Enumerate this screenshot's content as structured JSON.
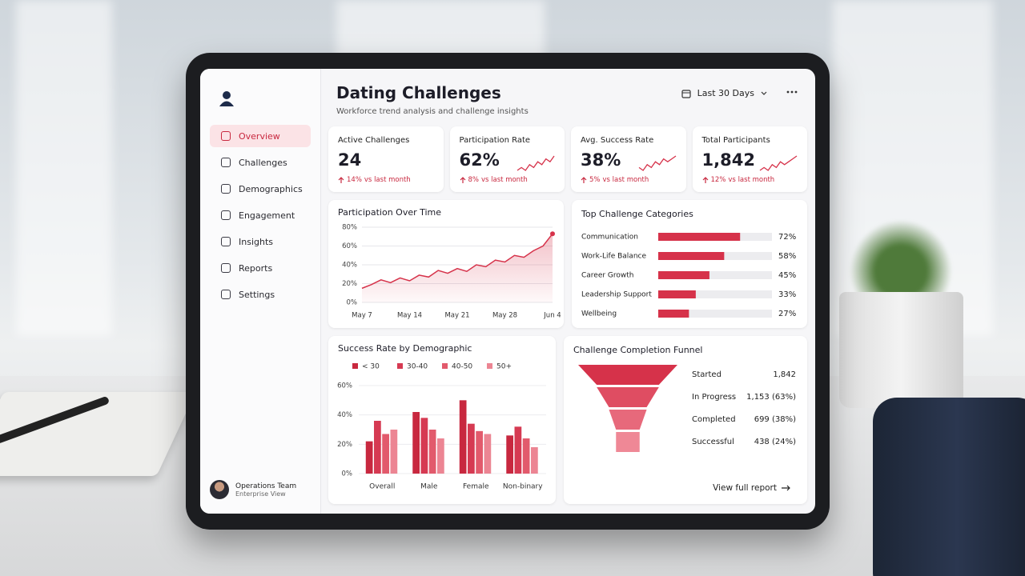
{
  "header": {
    "title": "Dating Challenges",
    "subtitle": "Workforce trend analysis and challenge insights",
    "range": "Last 30 Days"
  },
  "nav": [
    "Overview",
    "Challenges",
    "Demographics",
    "Engagement",
    "Insights",
    "Reports",
    "Settings"
  ],
  "user": {
    "name": "Operations Team",
    "role": "Enterprise View"
  },
  "kpis": [
    {
      "label": "Active Challenges",
      "value": "24",
      "delta": "14%",
      "note": "vs last month"
    },
    {
      "label": "Participation Rate",
      "value": "62%",
      "delta": "8%",
      "note": "vs last month",
      "trend": [
        3,
        4,
        3,
        5,
        4,
        6,
        5,
        7,
        6,
        8
      ]
    },
    {
      "label": "Avg. Success Rate",
      "value": "38%",
      "delta": "5%",
      "note": "vs last month",
      "trend": [
        4,
        3,
        5,
        4,
        6,
        5,
        7,
        6,
        7,
        8
      ]
    },
    {
      "label": "Total Participants",
      "value": "1,842",
      "delta": "12%",
      "note": "vs last month",
      "trend": [
        3,
        4,
        3,
        5,
        4,
        6,
        5,
        6,
        7,
        8
      ]
    }
  ],
  "link": "View full report",
  "chart_data": [
    {
      "type": "line",
      "title": "Participation Over Time",
      "categories": [
        "May 7",
        null,
        null,
        null,
        null,
        "May 14",
        null,
        null,
        null,
        null,
        "May 21",
        null,
        null,
        null,
        null,
        "May 28",
        null,
        null,
        null,
        null,
        "Jun 4"
      ],
      "values": [
        15,
        19,
        24,
        21,
        26,
        23,
        29,
        27,
        34,
        31,
        36,
        33,
        40,
        38,
        45,
        43,
        50,
        48,
        55,
        60,
        73
      ],
      "color": "#d6324a",
      "ylim": [
        0,
        80
      ],
      "yticks": [
        {
          "value": 0,
          "label": "0%"
        },
        {
          "value": 20,
          "label": "20%"
        },
        {
          "value": 40,
          "label": "40%"
        },
        {
          "value": 60,
          "label": "60%"
        },
        {
          "value": 80,
          "label": "80%"
        }
      ],
      "grid": true
    },
    {
      "type": "hbar",
      "title": "Top Challenge Categories",
      "categories": [
        "Communication",
        "Work-Life Balance",
        "Career Growth",
        "Leadership Support",
        "Wellbeing"
      ],
      "values": [
        72,
        58,
        45,
        33,
        27
      ],
      "value_labels": [
        "72%",
        "58%",
        "45%",
        "33%",
        "27%"
      ],
      "color": "#d6324a",
      "xlim": [
        0,
        100
      ]
    },
    {
      "type": "grouped_bar",
      "title": "Success Rate by Demographic",
      "categories": [
        "Overall",
        "Male",
        "Female",
        "Non-binary"
      ],
      "series": [
        {
          "name": "< 30",
          "color": "#c8283f",
          "values": [
            22,
            42,
            50,
            26
          ]
        },
        {
          "name": "30-40",
          "color": "#d63a52",
          "values": [
            36,
            38,
            34,
            32
          ]
        },
        {
          "name": "40-50",
          "color": "#e25a6c",
          "values": [
            27,
            30,
            29,
            24
          ]
        },
        {
          "name": "50+",
          "color": "#ec8593",
          "values": [
            30,
            24,
            27,
            18
          ]
        }
      ],
      "ylim": [
        0,
        60
      ],
      "yticks": [
        {
          "value": 0,
          "label": "0%"
        },
        {
          "value": 20,
          "label": "20%"
        },
        {
          "value": 40,
          "label": "40%"
        },
        {
          "value": 60,
          "label": "60%"
        }
      ],
      "grid": true
    },
    {
      "type": "funnel",
      "title": "Challenge Completion Funnel",
      "categories": [
        "Started",
        "In Progress",
        "Completed",
        "Successful"
      ],
      "values": [
        1842,
        1153,
        699,
        438
      ],
      "value_labels": [
        "1,842",
        "1,153 (63%)",
        "699 (38%)",
        "438 (24%)"
      ],
      "colors": [
        "#d6324a",
        "#df4d62",
        "#e7697b",
        "#ef8896"
      ]
    }
  ]
}
